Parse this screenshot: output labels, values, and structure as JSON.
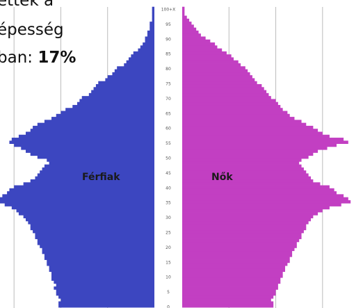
{
  "chart_data": {
    "type": "pyramid",
    "annotation": [
      "ettek a",
      "épesség",
      "ban:"
    ],
    "annotation_value": "17%",
    "categories": [
      "0",
      null,
      null,
      null,
      null,
      "5",
      null,
      null,
      null,
      null,
      "10",
      null,
      null,
      null,
      null,
      "15",
      null,
      null,
      null,
      null,
      "20",
      null,
      null,
      null,
      null,
      "25",
      null,
      null,
      null,
      null,
      "30",
      null,
      null,
      null,
      null,
      "35",
      null,
      null,
      null,
      null,
      "40",
      null,
      null,
      null,
      null,
      "45",
      null,
      null,
      null,
      null,
      "50",
      null,
      null,
      null,
      null,
      "55",
      null,
      null,
      null,
      null,
      "60",
      null,
      null,
      null,
      null,
      "65",
      null,
      null,
      null,
      null,
      "70",
      null,
      null,
      null,
      null,
      "75",
      null,
      null,
      null,
      null,
      "80",
      null,
      null,
      null,
      null,
      "85",
      null,
      null,
      null,
      null,
      "90",
      null,
      null,
      null,
      null,
      "95",
      null,
      null,
      null,
      null,
      "100+X"
    ],
    "series": [
      {
        "name": "Férfiak",
        "color": "#3c46c0",
        "side": "left",
        "values": [
          41,
          41,
          40,
          41,
          42,
          42,
          43,
          42,
          43,
          44,
          44,
          44,
          45,
          45,
          46,
          46,
          47,
          47,
          48,
          48,
          49,
          50,
          50,
          51,
          51,
          52,
          53,
          53,
          54,
          55,
          56,
          58,
          59,
          61,
          64,
          66,
          66,
          65,
          63,
          62,
          60,
          56,
          53,
          51,
          50,
          49,
          48,
          47,
          45,
          46,
          50,
          53,
          55,
          57,
          60,
          62,
          61,
          58,
          55,
          53,
          52,
          50,
          47,
          44,
          42,
          40,
          38,
          35,
          33,
          32,
          31,
          28,
          27,
          26,
          25,
          24,
          21,
          20,
          18,
          17,
          16,
          13,
          12,
          11,
          10,
          9,
          7,
          6,
          5,
          4,
          4,
          3,
          3,
          2,
          2,
          2,
          1,
          1,
          1,
          1,
          1
        ]
      },
      {
        "name": "Nők",
        "color": "#c23fc2",
        "side": "right",
        "values": [
          39,
          39,
          38,
          39,
          40,
          40,
          41,
          41,
          42,
          42,
          43,
          43,
          44,
          44,
          45,
          46,
          46,
          47,
          47,
          48,
          49,
          49,
          50,
          51,
          51,
          52,
          53,
          53,
          54,
          55,
          56,
          58,
          60,
          63,
          68,
          72,
          71,
          69,
          66,
          65,
          63,
          59,
          56,
          55,
          54,
          53,
          52,
          51,
          50,
          51,
          54,
          56,
          58,
          62,
          66,
          71,
          69,
          63,
          60,
          58,
          56,
          53,
          51,
          48,
          46,
          45,
          43,
          42,
          41,
          40,
          38,
          37,
          36,
          35,
          34,
          32,
          31,
          30,
          29,
          28,
          27,
          25,
          24,
          22,
          21,
          19,
          17,
          15,
          14,
          12,
          10,
          8,
          7,
          6,
          5,
          4,
          3,
          2,
          1,
          1,
          1
        ]
      }
    ],
    "xlim": [
      0,
      66
    ],
    "grid_values": [
      20,
      40,
      60
    ],
    "grid": true
  }
}
